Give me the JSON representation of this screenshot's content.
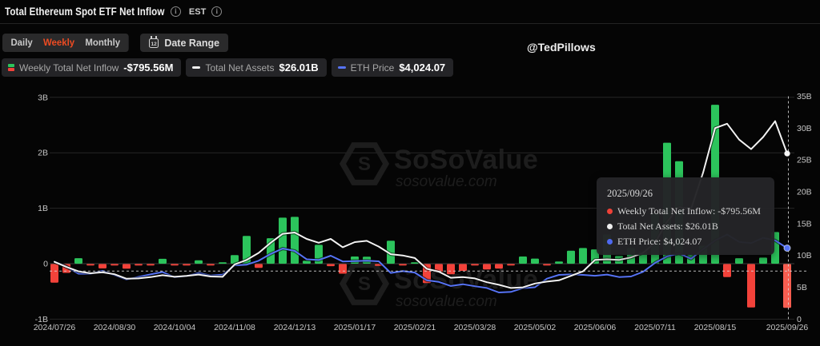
{
  "header": {
    "title": "Total Ethereum Spot ETF Net Inflow",
    "timezone_label": "EST"
  },
  "toolbar": {
    "tabs": [
      {
        "label": "Daily",
        "active": false
      },
      {
        "label": "Weekly",
        "active": true
      },
      {
        "label": "Monthly",
        "active": false
      }
    ],
    "date_range_label": "Date Range",
    "calendar_icon_day": "12"
  },
  "author_handle": "@TedPillows",
  "legend": [
    {
      "label": "Weekly Total Net Inflow",
      "value": "-$795.56M",
      "icon": "stacked-bars-icon"
    },
    {
      "label": "Total Net Assets",
      "value": "$26.01B",
      "icon": "white-dash-icon"
    },
    {
      "label": "ETH Price",
      "value": "$4,024.07",
      "icon": "blue-dash-icon"
    }
  ],
  "watermark": {
    "brand": "SoSoValue",
    "domain": "sosovalue.com"
  },
  "tooltip": {
    "date": "2025/09/26",
    "rows": [
      {
        "label": "Weekly Total Net Inflow",
        "value": "-$795.56M",
        "dot_color": "#ef4137"
      },
      {
        "label": "Total Net Assets",
        "value": "$26.01B",
        "dot_color": "#eeeeee"
      },
      {
        "label": "ETH Price",
        "value": "$4,024.07",
        "dot_color": "#4e69f0"
      }
    ]
  },
  "colors": {
    "positive_bar": "#2cc45c",
    "negative_bar": "#f2423a",
    "highlight_bar": "#f75d50",
    "net_assets_line": "#f2f2f2",
    "eth_price_line": "#5673f5",
    "grid_line": "#272727",
    "zero_line": "#3a3a3a",
    "axis_label": "#c7c7c7",
    "crosshair": "#d8d8d8",
    "accent_tab": "#ee4b22",
    "watermark": "#202020"
  },
  "chart_data": {
    "type": "bar+line",
    "title": "Total Ethereum Spot ETF Net Inflow (Weekly)",
    "x": [
      "2024/07/26",
      "2024/08/02",
      "2024/08/09",
      "2024/08/16",
      "2024/08/23",
      "2024/08/30",
      "2024/09/06",
      "2024/09/13",
      "2024/09/20",
      "2024/09/27",
      "2024/10/04",
      "2024/10/11",
      "2024/10/18",
      "2024/10/25",
      "2024/11/01",
      "2024/11/08",
      "2024/11/15",
      "2024/11/22",
      "2024/11/29",
      "2024/12/06",
      "2024/12/13",
      "2024/12/20",
      "2024/12/27",
      "2025/01/03",
      "2025/01/10",
      "2025/01/17",
      "2025/01/24",
      "2025/01/31",
      "2025/02/07",
      "2025/02/14",
      "2025/02/21",
      "2025/02/28",
      "2025/03/07",
      "2025/03/14",
      "2025/03/21",
      "2025/03/28",
      "2025/04/04",
      "2025/04/11",
      "2025/04/18",
      "2025/04/25",
      "2025/05/02",
      "2025/05/09",
      "2025/05/16",
      "2025/05/23",
      "2025/05/30",
      "2025/06/06",
      "2025/06/13",
      "2025/06/20",
      "2025/06/27",
      "2025/07/04",
      "2025/07/11",
      "2025/07/18",
      "2025/07/25",
      "2025/08/01",
      "2025/08/08",
      "2025/08/15",
      "2025/08/22",
      "2025/08/29",
      "2025/09/05",
      "2025/09/12",
      "2025/09/19",
      "2025/09/26"
    ],
    "series": [
      {
        "name": "Weekly Total Net Inflow",
        "type": "bar",
        "unit": "$M",
        "axis": "left",
        "values": [
          -341,
          -165,
          100,
          -15,
          -85,
          -12,
          -91,
          -19,
          -26,
          88,
          -30,
          -11,
          60,
          -24,
          13,
          156,
          500,
          -75,
          460,
          830,
          845,
          55,
          340,
          -45,
          -180,
          130,
          125,
          -40,
          415,
          -25,
          8,
          -350,
          -150,
          -190,
          -130,
          -30,
          -104,
          -88,
          -30,
          130,
          92,
          -18,
          40,
          235,
          283,
          258,
          528,
          140,
          283,
          219,
          908,
          2182,
          1848,
          154,
          326,
          2866,
          -240,
          100,
          -790,
          110,
          570,
          -795.56
        ]
      },
      {
        "name": "Total Net Assets",
        "type": "line",
        "unit": "$B",
        "axis": "right",
        "values": [
          9.0,
          8.2,
          7.5,
          7.2,
          7.35,
          7.05,
          6.35,
          6.4,
          6.6,
          6.9,
          6.65,
          6.8,
          7.0,
          6.7,
          6.65,
          8.6,
          9.3,
          10.4,
          12.0,
          13.4,
          13.6,
          12.6,
          12.0,
          12.6,
          11.3,
          12.1,
          12.3,
          11.4,
          10.2,
          10.0,
          9.6,
          7.9,
          7.45,
          6.5,
          6.6,
          6.4,
          5.8,
          5.4,
          4.9,
          5.0,
          5.6,
          5.9,
          6.1,
          6.8,
          7.5,
          9.3,
          9.4,
          9.3,
          9.7,
          10.4,
          12.0,
          15.3,
          17.6,
          17.3,
          23.0,
          30.0,
          30.7,
          28.2,
          26.7,
          28.6,
          31.1,
          26.01
        ]
      },
      {
        "name": "ETH Price",
        "type": "line",
        "unit": "$",
        "axis": "hidden",
        "values": [
          3270,
          2990,
          2600,
          2590,
          2760,
          2520,
          2270,
          2420,
          2560,
          2690,
          2400,
          2470,
          2640,
          2500,
          2540,
          3060,
          3100,
          3320,
          3700,
          4000,
          3870,
          3400,
          3360,
          3600,
          3280,
          3300,
          3320,
          3290,
          2640,
          2740,
          2660,
          2230,
          2140,
          1910,
          2010,
          1900,
          1800,
          1550,
          1580,
          1790,
          1840,
          2320,
          2530,
          2560,
          2530,
          2480,
          2550,
          2410,
          2440,
          2700,
          3200,
          3560,
          3730,
          3430,
          3960,
          4450,
          4780,
          4370,
          4300,
          4600,
          4450,
          4024.07
        ]
      }
    ],
    "left_axis": {
      "ticks": [
        {
          "label": "3B",
          "v": 3
        },
        {
          "label": "2B",
          "v": 2
        },
        {
          "label": "1B",
          "v": 1
        },
        {
          "label": "0",
          "v": 0
        },
        {
          "label": "-1B",
          "v": -1
        }
      ],
      "range_B": [
        -1,
        3
      ]
    },
    "right_axis": {
      "ticks": [
        {
          "label": "35B",
          "v": 35
        },
        {
          "label": "30B",
          "v": 30
        },
        {
          "label": "25B",
          "v": 25
        },
        {
          "label": "20B",
          "v": 20
        },
        {
          "label": "15B",
          "v": 15
        },
        {
          "label": "10B",
          "v": 10
        },
        {
          "label": "5B",
          "v": 5
        },
        {
          "label": "0",
          "v": 0
        }
      ],
      "range_B": [
        0,
        35
      ]
    },
    "x_axis": {
      "tick_indices": [
        0,
        5,
        10,
        15,
        20,
        25,
        30,
        35,
        40,
        45,
        50,
        55,
        61
      ]
    },
    "grid": true,
    "legend_position": "top-left",
    "hovered_index": 61
  }
}
